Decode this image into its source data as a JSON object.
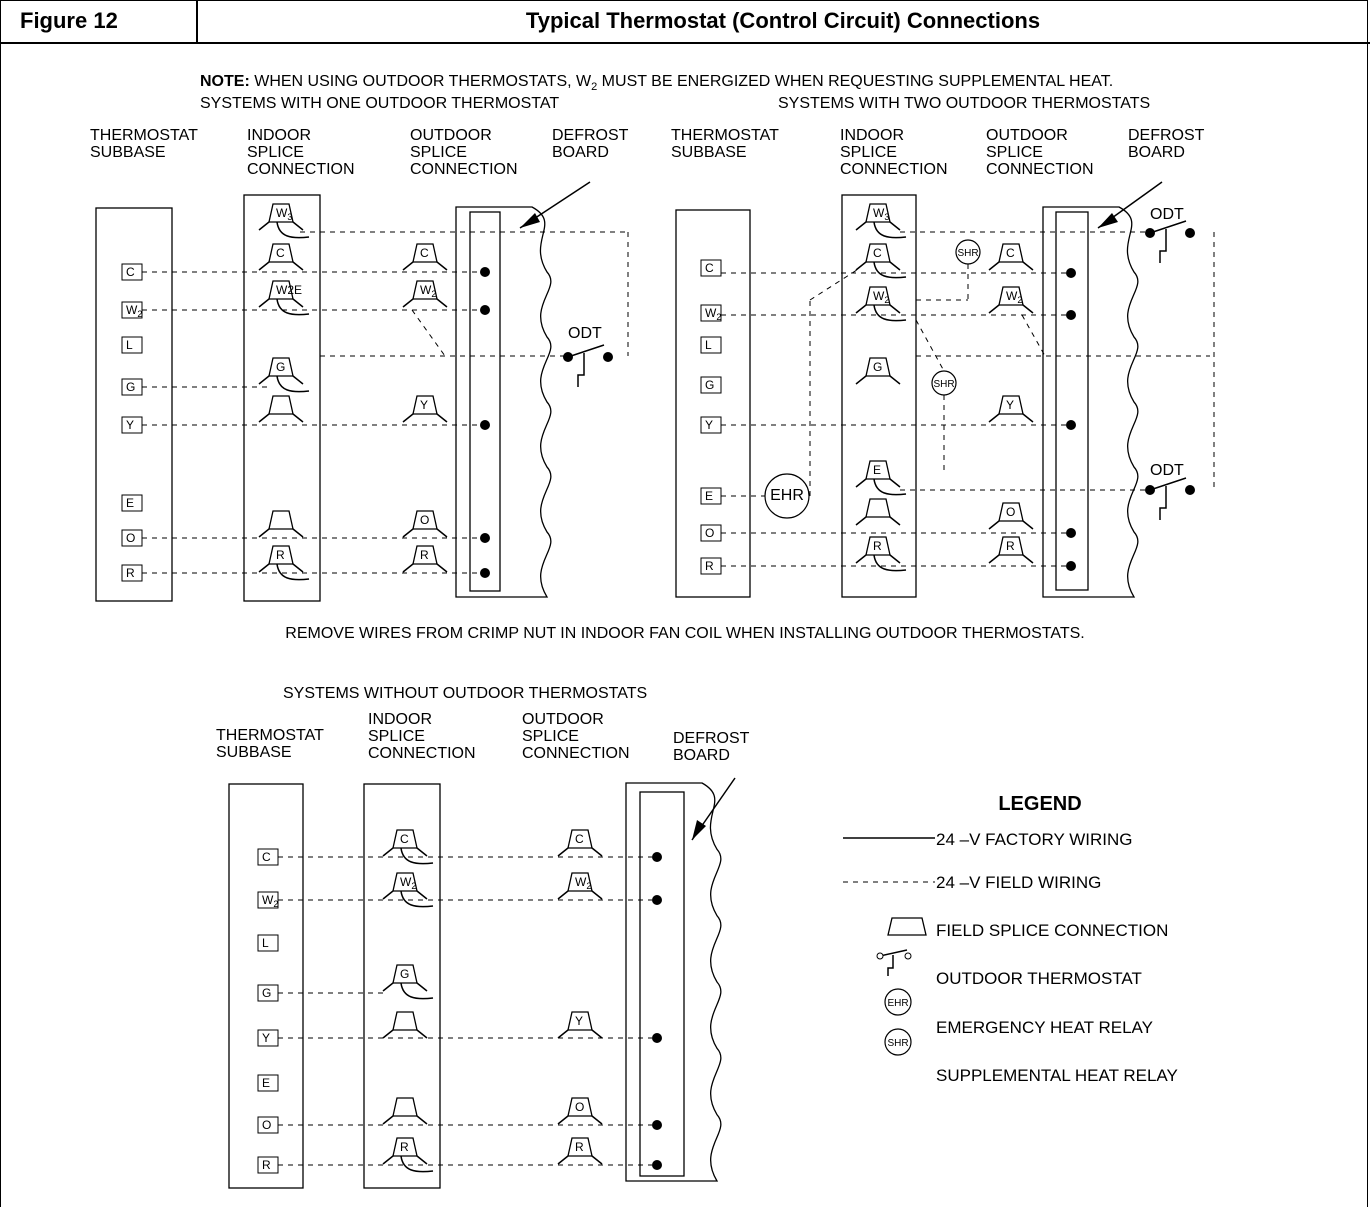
{
  "header": {
    "figure_number": "Figure 12",
    "title": "Typical Thermostat (Control Circuit) Connections"
  },
  "note": {
    "bold": "NOTE:",
    "text": " WHEN USING OUTDOOR THERMOSTATS, W",
    "sub": "2",
    "rest": " MUST BE ENERGIZED WHEN REQUESTING SUPPLEMENTAL HEAT."
  },
  "one_odt": {
    "title": "SYSTEMS WITH ONE OUTDOOR THERMOSTAT",
    "thermostat_label": [
      "THERMOSTAT",
      "SUBBASE"
    ],
    "indoor_label": [
      "INDOOR",
      "SPLICE",
      "CONNECTION"
    ],
    "outdoor_label": [
      "OUTDOOR",
      "SPLICE",
      "CONNECTION"
    ],
    "defrost_label": [
      "DEFROST",
      "BOARD"
    ],
    "odt_label": "ODT",
    "terminals": [
      "C",
      "W2",
      "L",
      "G",
      "Y",
      "E",
      "O",
      "R"
    ]
  },
  "two_odt": {
    "title": "SYSTEMS WITH TWO OUTDOOR THERMOSTATS",
    "thermostat_label": [
      "THERMOSTAT",
      "SUBBASE"
    ],
    "indoor_label": [
      "INDOOR",
      "SPLICE",
      "CONNECTION"
    ],
    "outdoor_label": [
      "OUTDOOR",
      "SPLICE",
      "CONNECTION"
    ],
    "defrost_label": [
      "DEFROST",
      "BOARD"
    ],
    "odt_label": "ODT",
    "ehr_label": "EHR",
    "shr_label": "SHR",
    "terminals": [
      "C",
      "W2",
      "L",
      "G",
      "Y",
      "E",
      "O",
      "R"
    ]
  },
  "remove_note": "REMOVE WIRES FROM CRIMP NUT IN INDOOR FAN COIL WHEN INSTALLING OUTDOOR THERMOSTATS.",
  "no_odt": {
    "title": "SYSTEMS WITHOUT OUTDOOR THERMOSTATS",
    "thermostat_label": [
      "THERMOSTAT",
      "SUBBASE"
    ],
    "indoor_label": [
      "INDOOR",
      "SPLICE",
      "CONNECTION"
    ],
    "outdoor_label": [
      "OUTDOOR",
      "SPLICE",
      "CONNECTION"
    ],
    "defrost_label": [
      "DEFROST",
      "BOARD"
    ],
    "terminals": [
      "C",
      "W2",
      "L",
      "G",
      "Y",
      "E",
      "O",
      "R"
    ]
  },
  "legend": {
    "title": "LEGEND",
    "items": [
      "24 –V FACTORY WIRING",
      "24 –V FIELD WIRING",
      "FIELD SPLICE CONNECTION",
      "OUTDOOR THERMOSTAT",
      "EMERGENCY HEAT RELAY",
      "SUPPLEMENTAL HEAT RELAY"
    ],
    "ehr_symbol": "EHR",
    "shr_symbol": "SHR"
  }
}
